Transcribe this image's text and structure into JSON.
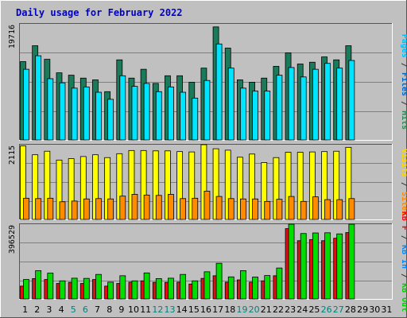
{
  "chart_data": {
    "type": "bar",
    "title": "Daily usage for February 2022",
    "x": [
      1,
      2,
      3,
      4,
      5,
      6,
      7,
      8,
      9,
      10,
      11,
      12,
      13,
      14,
      15,
      16,
      17,
      18,
      19,
      20,
      21,
      22,
      23,
      24,
      25,
      26,
      27,
      28,
      29,
      30,
      31
    ],
    "weekend_days": [
      5,
      6,
      12,
      13,
      19,
      20,
      26,
      27
    ],
    "panels": [
      {
        "max_label": "19716",
        "ymax": 19716,
        "legend": [
          {
            "text": "Pages",
            "color": "#00c0ff"
          },
          {
            "text": " / ",
            "color": "#333333"
          },
          {
            "text": "Files",
            "color": "#0066cc"
          },
          {
            "text": " / ",
            "color": "#333333"
          },
          {
            "text": "Hits",
            "color": "#2e8b57"
          }
        ],
        "series": [
          {
            "key": "hits",
            "color": "#1a7a5a",
            "values": [
              13300,
              16000,
              13700,
              11400,
              11000,
              10500,
              10200,
              8200,
              13600,
              10500,
              12000,
              9600,
              10900,
              10900,
              9800,
              12200,
              19200,
              15600,
              10200,
              9800,
              10500,
              12500,
              14800,
              12900,
              13200,
              14100,
              13600,
              16000,
              0,
              0,
              0
            ]
          },
          {
            "key": "pages",
            "color": "#00e5ff",
            "values": [
              12000,
              14300,
              10400,
              9700,
              8800,
              9000,
              8100,
              6900,
              10900,
              9100,
              9600,
              8200,
              9000,
              8100,
              7100,
              10100,
              16300,
              12200,
              8800,
              8300,
              8300,
              11000,
              12300,
              10700,
              12000,
              13000,
              12200,
              13500,
              0,
              0,
              0
            ]
          }
        ]
      },
      {
        "max_label": "2115",
        "ymax": 2115,
        "legend": [
          {
            "text": "Visits",
            "color": "#ffd700"
          },
          {
            "text": " / ",
            "color": "#333333"
          },
          {
            "text": "Sites",
            "color": "#ff8800"
          }
        ],
        "series": [
          {
            "key": "visits",
            "color": "#ffff00",
            "values": [
              2080,
              1830,
              1930,
              1680,
              1720,
              1780,
              1830,
              1750,
              1860,
              1950,
              1950,
              1940,
              1940,
              1920,
              1910,
              2115,
              2000,
              1960,
              1760,
              1850,
              1610,
              1750,
              1900,
              1900,
              1910,
              1920,
              1930,
              2040,
              0,
              0,
              0
            ]
          },
          {
            "key": "sites",
            "color": "#ff8c00",
            "values": [
              600,
              590,
              600,
              500,
              520,
              580,
              590,
              580,
              660,
              710,
              690,
              680,
              710,
              590,
              600,
              800,
              650,
              590,
              580,
              580,
              510,
              570,
              650,
              510,
              640,
              560,
              560,
              590,
              0,
              0,
              0
            ]
          }
        ]
      },
      {
        "max_label": "396529",
        "ymax": 396529,
        "legend": [
          {
            "text": "KB F",
            "color": "#ff0000"
          },
          {
            "text": " / ",
            "color": "#333333"
          },
          {
            "text": "KB In",
            "color": "#0088ff"
          },
          {
            "text": " / ",
            "color": "#333333"
          },
          {
            "text": "KB Out",
            "color": "#00cc00"
          }
        ],
        "series": [
          {
            "key": "kbf",
            "color": "#dd1111",
            "values": [
              68000,
              108000,
              103000,
              82000,
              88000,
              82000,
              103000,
              68000,
              82000,
              89000,
              96000,
              88000,
              88000,
              89000,
              79000,
              109000,
              123000,
              89000,
              101000,
              89000,
              96000,
              123000,
              373000,
              309000,
              315000,
              309000,
              322000,
              352000,
              0,
              0,
              0
            ]
          },
          {
            "key": "kbout",
            "color": "#00dd00",
            "values": [
              103000,
              150000,
              137000,
              96000,
              110000,
              109000,
              130000,
              89000,
              123000,
              96000,
              138000,
              108000,
              110000,
              130000,
              96000,
              144000,
              189000,
              117000,
              150000,
              116000,
              124000,
              164000,
              396529,
              347000,
              350000,
              351000,
              345000,
              396529,
              0,
              0,
              0
            ]
          }
        ]
      }
    ]
  }
}
